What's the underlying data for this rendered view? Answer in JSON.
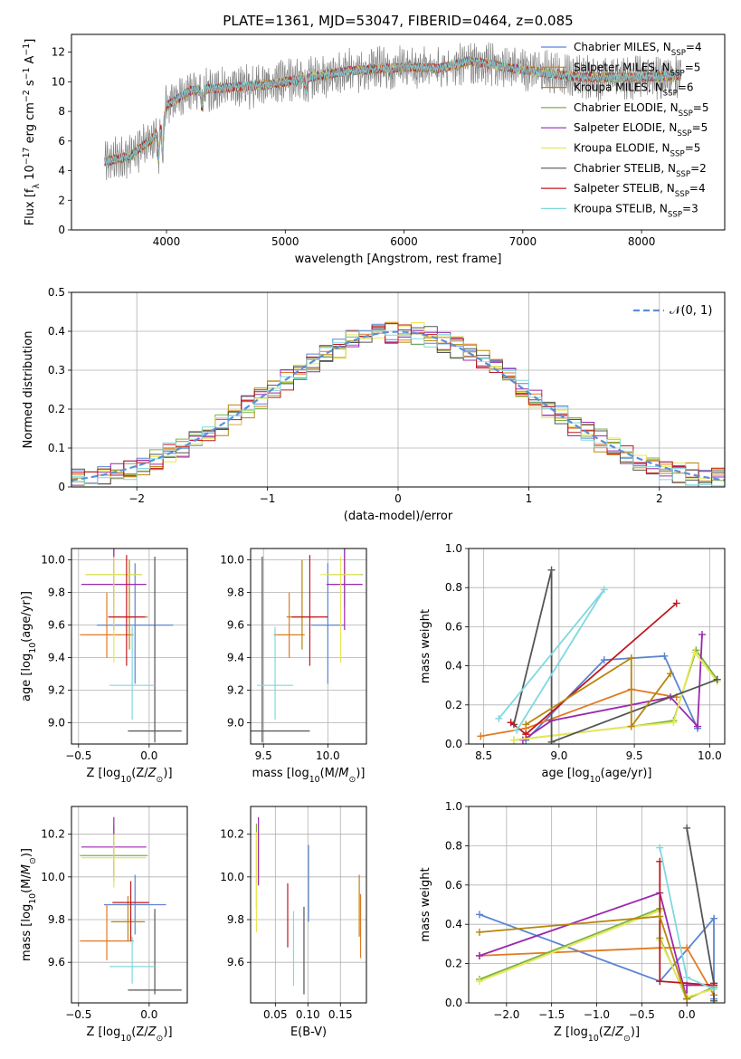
{
  "figure_title": "PLATE=1361, MJD=53047, FIBERID=0464, z=0.085",
  "series": [
    {
      "name": "Chabrier MILES, N_SSP=4",
      "lib": "Chabrier MILES",
      "n": "4",
      "color": "#5b85d3"
    },
    {
      "name": "Salpeter MILES, N_SSP=5",
      "lib": "Salpeter MILES",
      "n": "5",
      "color": "#e07a22"
    },
    {
      "name": "Kroupa MILES, N_SSP=6",
      "lib": "Kroupa MILES",
      "n": "6",
      "color": "#b8860b"
    },
    {
      "name": "Chabrier ELODIE, N_SSP=5",
      "lib": "Chabrier ELODIE",
      "n": "5",
      "color": "#7cb342"
    },
    {
      "name": "Salpeter ELODIE, N_SSP=5",
      "lib": "Salpeter ELODIE",
      "n": "5",
      "color": "#9c27b0"
    },
    {
      "name": "Kroupa ELODIE, N_SSP=5",
      "lib": "Kroupa ELODIE",
      "n": "5",
      "color": "#e8e855"
    },
    {
      "name": "Chabrier STELIB, N_SSP=2",
      "lib": "Chabrier STELIB",
      "n": "2",
      "color": "#555555"
    },
    {
      "name": "Salpeter STELIB, N_SSP=4",
      "lib": "Salpeter STELIB",
      "n": "4",
      "color": "#c0171e"
    },
    {
      "name": "Kroupa STELIB, N_SSP=3",
      "lib": "Kroupa STELIB",
      "n": "3",
      "color": "#80d8e0"
    }
  ],
  "chart_data": [
    {
      "id": "spectrum",
      "type": "line",
      "xlabel": "wavelength [Angstrom, rest frame]",
      "ylabel": "Flux [f_λ 10^-17 erg cm^-2 s^-1 A^-1]",
      "xlim": [
        3200,
        8700
      ],
      "ylim": [
        0,
        13.2
      ],
      "xticks": [
        4000,
        5000,
        6000,
        7000,
        8000
      ],
      "yticks": [
        0,
        2,
        4,
        6,
        8,
        10,
        12
      ],
      "grid": false,
      "legend": "upper right",
      "continuum_anchors": [
        [
          3480,
          4.6
        ],
        [
          3700,
          5.0
        ],
        [
          3900,
          6.3
        ],
        [
          4000,
          8.4
        ],
        [
          4200,
          9.4
        ],
        [
          4500,
          9.6
        ],
        [
          4861,
          9.8
        ],
        [
          5000,
          10.0
        ],
        [
          5500,
          10.7
        ],
        [
          6000,
          11.0
        ],
        [
          6300,
          10.9
        ],
        [
          6563,
          11.4
        ],
        [
          7000,
          10.8
        ],
        [
          7500,
          10.3
        ],
        [
          8000,
          10.3
        ],
        [
          8300,
          10.4
        ]
      ],
      "dips": [
        [
          3933,
          2.2
        ],
        [
          3968,
          2.5
        ],
        [
          4300,
          1.2
        ],
        [
          5175,
          0.8
        ],
        [
          5890,
          0.6
        ]
      ],
      "x_range": [
        3480,
        8330
      ]
    },
    {
      "id": "residuals",
      "type": "histogram",
      "xlabel": "(data-model)/error",
      "ylabel": "Normed distribution",
      "xlim": [
        -2.5,
        2.5
      ],
      "ylim": [
        0,
        0.5
      ],
      "xticks": [
        -2,
        -1,
        0,
        1,
        2
      ],
      "yticks": [
        0,
        0.1,
        0.2,
        0.3,
        0.4,
        0.5
      ],
      "grid": true,
      "legend": "upper right",
      "legend_label": "𝒩(0, 1)",
      "bin_width": 0.1,
      "reference_mean": 0,
      "reference_sigma": 1
    },
    {
      "id": "age_vs_Z",
      "type": "errorbar",
      "xlabel": "Z [log10(Z/Z⊙)]",
      "ylabel": "age [log10(age/yr)]",
      "xlim": [
        -0.55,
        0.27
      ],
      "ylim": [
        8.87,
        10.07
      ],
      "xticks": [
        -0.5,
        0.0
      ],
      "yticks": [
        9.0,
        9.2,
        9.4,
        9.6,
        9.8,
        10.0
      ],
      "xtick_labels": [
        "−0.5",
        "0.0"
      ],
      "ytick_labels": [
        "9.0",
        "9.2",
        "9.4",
        "9.6",
        "9.8",
        "10.0"
      ],
      "grid": true,
      "points": [
        {
          "s": 0,
          "x": -0.1,
          "y": 9.6,
          "xerr": 0.27,
          "yerr": [
            0.36,
            0.38
          ]
        },
        {
          "s": 1,
          "x": -0.3,
          "y": 9.54,
          "xerr": 0.19,
          "yerr": [
            0.14,
            0.26
          ]
        },
        {
          "s": 2,
          "x": -0.14,
          "y": 9.65,
          "xerr": 0.13,
          "yerr": [
            0.2,
            0.35
          ]
        },
        {
          "s": 3,
          "x": -0.25,
          "y": 9.91,
          "xerr": 0.2,
          "yerr": [
            0.2,
            0.16
          ]
        },
        {
          "s": 4,
          "x": -0.25,
          "y": 9.85,
          "xerr": 0.23,
          "yerr": [
            0.28,
            0.23
          ]
        },
        {
          "s": 5,
          "x": -0.25,
          "y": 9.91,
          "xerr": 0.2,
          "yerr": [
            0.54,
            0.11
          ]
        },
        {
          "s": 6,
          "x": 0.04,
          "y": 8.95,
          "xerr": 0.19,
          "yerr": [
            0.07,
            1.07
          ]
        },
        {
          "s": 7,
          "x": -0.16,
          "y": 9.65,
          "xerr": 0.13,
          "yerr": [
            0.3,
            0.38
          ]
        },
        {
          "s": 8,
          "x": -0.12,
          "y": 9.23,
          "xerr": 0.16,
          "yerr": [
            0.21,
            0.36
          ]
        }
      ]
    },
    {
      "id": "age_vs_mass",
      "type": "errorbar",
      "xlabel": "mass [log10(M/M⊙)]",
      "ylabel": "",
      "xlim": [
        9.4,
        10.3
      ],
      "ylim": [
        8.87,
        10.07
      ],
      "xticks": [
        9.5,
        10.0
      ],
      "yticks": [
        9.0,
        9.2,
        9.4,
        9.6,
        9.8,
        10.0
      ],
      "xtick_labels": [
        "9.5",
        "10.0"
      ],
      "ytick_labels": [
        "9.0",
        "9.2",
        "9.4",
        "9.6",
        "9.8",
        "10.0"
      ],
      "grid": true,
      "points": [
        {
          "s": 0,
          "x": 10.0,
          "y": 9.6,
          "xerr": 0.13,
          "yerr": [
            0.36,
            0.38
          ]
        },
        {
          "s": 1,
          "x": 9.7,
          "y": 9.54,
          "xerr": 0.12,
          "yerr": [
            0.14,
            0.26
          ]
        },
        {
          "s": 2,
          "x": 9.8,
          "y": 9.65,
          "xerr": 0.12,
          "yerr": [
            0.2,
            0.35
          ]
        },
        {
          "s": 3,
          "x": 10.13,
          "y": 9.91,
          "xerr": 0.14,
          "yerr": [
            0.2,
            0.16
          ]
        },
        {
          "s": 4,
          "x": 10.13,
          "y": 9.85,
          "xerr": 0.14,
          "yerr": [
            0.28,
            0.23
          ]
        },
        {
          "s": 5,
          "x": 10.1,
          "y": 9.91,
          "xerr": 0.16,
          "yerr": [
            0.54,
            0.11
          ]
        },
        {
          "s": 6,
          "x": 9.49,
          "y": 8.95,
          "xerr": 0.37,
          "yerr": [
            0.07,
            1.07
          ]
        },
        {
          "s": 7,
          "x": 9.86,
          "y": 9.65,
          "xerr": 0.14,
          "yerr": [
            0.3,
            0.38
          ]
        },
        {
          "s": 8,
          "x": 9.59,
          "y": 9.23,
          "xerr": 0.14,
          "yerr": [
            0.21,
            0.36
          ]
        }
      ]
    },
    {
      "id": "weight_vs_age",
      "type": "line",
      "xlabel": "age [log10(age/yr)]",
      "ylabel": "mass weight",
      "xlim": [
        8.4,
        10.1
      ],
      "ylim": [
        0,
        1
      ],
      "xticks": [
        8.5,
        9.0,
        9.5,
        10.0
      ],
      "yticks": [
        0,
        0.2,
        0.4,
        0.6,
        0.8,
        1.0
      ],
      "xtick_labels": [
        "8.5",
        "9.0",
        "9.5",
        "10.0"
      ],
      "ytick_labels": [
        "0.0",
        "0.2",
        "0.4",
        "0.6",
        "0.8",
        "1.0"
      ],
      "grid": true,
      "lines": [
        {
          "s": 0,
          "pts": [
            [
              8.78,
              0.02
            ],
            [
              9.3,
              0.43
            ],
            [
              9.7,
              0.45
            ],
            [
              9.92,
              0.08
            ]
          ]
        },
        {
          "s": 1,
          "pts": [
            [
              8.48,
              0.04
            ],
            [
              8.78,
              0.08
            ],
            [
              9.48,
              0.28
            ],
            [
              9.78,
              0.24
            ]
          ]
        },
        {
          "s": 3,
          "pts": [
            [
              8.7,
              0.02
            ],
            [
              9.48,
              0.09
            ],
            [
              9.76,
              0.12
            ],
            [
              9.91,
              0.48
            ],
            [
              10.05,
              0.33
            ]
          ]
        },
        {
          "s": 4,
          "pts": [
            [
              8.76,
              0.02
            ],
            [
              8.95,
              0.12
            ],
            [
              9.74,
              0.24
            ],
            [
              9.92,
              0.09
            ],
            [
              9.95,
              0.56
            ]
          ]
        },
        {
          "s": 5,
          "pts": [
            [
              8.7,
              0.02
            ],
            [
              9.48,
              0.09
            ],
            [
              9.76,
              0.11
            ],
            [
              9.9,
              0.47
            ],
            [
              10.05,
              0.32
            ]
          ]
        },
        {
          "s": 6,
          "pts": [
            [
              8.7,
              0.1
            ],
            [
              8.95,
              0.89
            ],
            [
              8.95,
              0.01
            ],
            [
              10.05,
              0.33
            ]
          ]
        },
        {
          "s": 7,
          "pts": [
            [
              8.68,
              0.11
            ],
            [
              8.78,
              0.05
            ],
            [
              9.78,
              0.72
            ]
          ]
        },
        {
          "s": 8,
          "pts": [
            [
              8.6,
              0.13
            ],
            [
              9.3,
              0.79
            ],
            [
              8.72,
              0.07
            ]
          ]
        },
        {
          "s": 2,
          "pts": [
            [
              8.78,
              0.1
            ],
            [
              9.48,
              0.44
            ],
            [
              9.48,
              0.09
            ],
            [
              9.74,
              0.36
            ]
          ]
        }
      ]
    },
    {
      "id": "mass_vs_Z",
      "type": "errorbar",
      "xlabel": "Z [log10(Z/Z⊙)]",
      "ylabel": "mass [log10(M/M⊙)]",
      "xlim": [
        -0.55,
        0.27
      ],
      "ylim": [
        9.41,
        10.33
      ],
      "xticks": [
        -0.5,
        0.0
      ],
      "yticks": [
        9.6,
        9.8,
        10.0,
        10.2
      ],
      "xtick_labels": [
        "−0.5",
        "0.0"
      ],
      "ytick_labels": [
        "9.6",
        "9.8",
        "10.0",
        "10.2"
      ],
      "grid": true,
      "points": [
        {
          "s": 0,
          "x": -0.1,
          "y": 9.87,
          "xerr": 0.22,
          "yerr": [
            0.14,
            0.14
          ]
        },
        {
          "s": 1,
          "x": -0.3,
          "y": 9.7,
          "xerr": 0.19,
          "yerr": [
            0.09,
            0.17
          ]
        },
        {
          "s": 2,
          "x": -0.15,
          "y": 9.79,
          "xerr": 0.12,
          "yerr": [
            0.09,
            0.12
          ]
        },
        {
          "s": 3,
          "x": -0.25,
          "y": 10.1,
          "xerr": 0.24,
          "yerr": [
            0.12,
            0.14
          ]
        },
        {
          "s": 4,
          "x": -0.25,
          "y": 10.14,
          "xerr": 0.23,
          "yerr": [
            0.14,
            0.14
          ]
        },
        {
          "s": 5,
          "x": -0.25,
          "y": 10.09,
          "xerr": 0.23,
          "yerr": [
            0.14,
            0.11
          ]
        },
        {
          "s": 6,
          "x": 0.04,
          "y": 9.47,
          "xerr": 0.19,
          "yerr": [
            0.02,
            0.38
          ]
        },
        {
          "s": 7,
          "x": -0.13,
          "y": 9.88,
          "xerr": 0.13,
          "yerr": [
            0.18,
            0.1
          ]
        },
        {
          "s": 8,
          "x": -0.12,
          "y": 9.58,
          "xerr": 0.16,
          "yerr": [
            0.08,
            0.14
          ]
        }
      ]
    },
    {
      "id": "mass_vs_ebv",
      "type": "errorbar",
      "xlabel": "E(B-V)",
      "ylabel": "",
      "xlim": [
        0.012,
        0.19
      ],
      "ylim": [
        9.41,
        10.33
      ],
      "xticks": [
        0.05,
        0.1,
        0.15
      ],
      "yticks": [
        9.6,
        9.8,
        10.0,
        10.2
      ],
      "xtick_labels": [
        "0.05",
        "0.10",
        "0.15"
      ],
      "ytick_labels": [
        "9.6",
        "9.8",
        "10.0",
        "10.2"
      ],
      "grid": true,
      "points": [
        {
          "s": 0,
          "x": 0.101,
          "y": 9.97,
          "xerr": 0,
          "yerr": [
            0.18,
            0.18
          ]
        },
        {
          "s": 1,
          "x": 0.181,
          "y": 9.78,
          "xerr": 0,
          "yerr": [
            0.16,
            0.14
          ]
        },
        {
          "s": 2,
          "x": 0.179,
          "y": 9.85,
          "xerr": 0,
          "yerr": [
            0.13,
            0.16
          ]
        },
        {
          "s": 3,
          "x": 0.021,
          "y": 10.05,
          "xerr": 0,
          "yerr": [
            0.2,
            0.2
          ]
        },
        {
          "s": 4,
          "x": 0.024,
          "y": 10.12,
          "xerr": 0,
          "yerr": [
            0.16,
            0.16
          ]
        },
        {
          "s": 5,
          "x": 0.021,
          "y": 9.96,
          "xerr": 0,
          "yerr": [
            0.22,
            0.25
          ]
        },
        {
          "s": 6,
          "x": 0.094,
          "y": 9.71,
          "xerr": 0,
          "yerr": [
            0.26,
            0.15
          ]
        },
        {
          "s": 7,
          "x": 0.069,
          "y": 9.82,
          "xerr": 0,
          "yerr": [
            0.15,
            0.15
          ]
        },
        {
          "s": 8,
          "x": 0.078,
          "y": 9.67,
          "xerr": 0,
          "yerr": [
            0.18,
            0.17
          ]
        }
      ]
    },
    {
      "id": "weight_vs_Z",
      "type": "line",
      "xlabel": "Z [log10(Z/Z⊙)]",
      "ylabel": "mass weight",
      "xlim": [
        -2.42,
        0.42
      ],
      "ylim": [
        0,
        1
      ],
      "xticks": [
        -2.0,
        -1.5,
        -1.0,
        -0.5,
        0.0
      ],
      "yticks": [
        0,
        0.2,
        0.4,
        0.6,
        0.8,
        1.0
      ],
      "xtick_labels": [
        "−2.0",
        "−1.5",
        "−1.0",
        "−0.5",
        "0.0"
      ],
      "ytick_labels": [
        "0.0",
        "0.2",
        "0.4",
        "0.6",
        "0.8",
        "1.0"
      ],
      "grid": true,
      "lines": [
        {
          "s": 0,
          "pts": [
            [
              -2.3,
              0.45
            ],
            [
              -0.3,
              0.11
            ],
            [
              0.3,
              0.43
            ],
            [
              0.3,
              0.02
            ]
          ]
        },
        {
          "s": 1,
          "pts": [
            [
              -2.3,
              0.24
            ],
            [
              -0.3,
              0.28
            ],
            [
              0.0,
              0.28
            ],
            [
              0.3,
              0.04
            ]
          ]
        },
        {
          "s": 3,
          "pts": [
            [
              -2.3,
              0.12
            ],
            [
              -0.3,
              0.48
            ],
            [
              -0.3,
              0.33
            ],
            [
              0.0,
              0.02
            ],
            [
              0.3,
              0.08
            ]
          ]
        },
        {
          "s": 4,
          "pts": [
            [
              -2.3,
              0.24
            ],
            [
              -0.3,
              0.56
            ],
            [
              0.0,
              0.02
            ],
            [
              0.0,
              0.09
            ],
            [
              0.3,
              0.09
            ]
          ]
        },
        {
          "s": 5,
          "pts": [
            [
              -2.3,
              0.11
            ],
            [
              -0.3,
              0.47
            ],
            [
              -0.3,
              0.32
            ],
            [
              0.0,
              0.03
            ],
            [
              0.3,
              0.07
            ]
          ]
        },
        {
          "s": 6,
          "pts": [
            [
              0.0,
              0.89
            ],
            [
              0.3,
              0.1
            ],
            [
              0.3,
              0.01
            ]
          ]
        },
        {
          "s": 7,
          "pts": [
            [
              -0.3,
              0.72
            ],
            [
              -0.3,
              0.11
            ],
            [
              0.3,
              0.09
            ]
          ]
        },
        {
          "s": 8,
          "pts": [
            [
              -0.3,
              0.79
            ],
            [
              0.0,
              0.13
            ],
            [
              0.3,
              0.07
            ]
          ]
        },
        {
          "s": 2,
          "pts": [
            [
              -2.3,
              0.36
            ],
            [
              -0.3,
              0.44
            ],
            [
              0.0,
              0.02
            ]
          ]
        }
      ]
    }
  ]
}
